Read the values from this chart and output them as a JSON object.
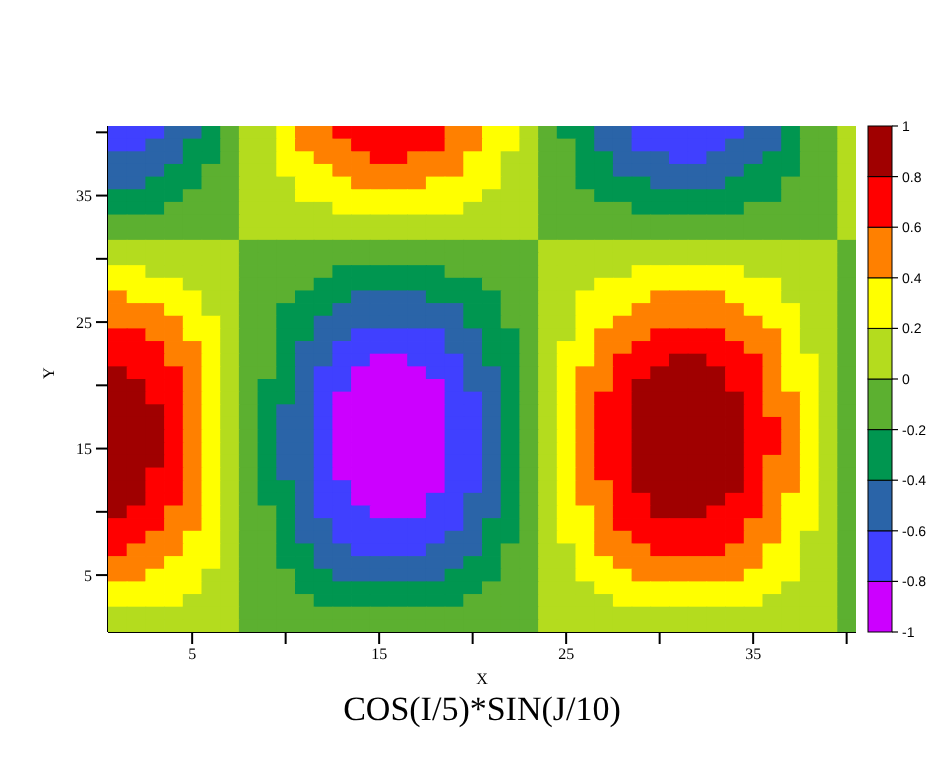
{
  "chart_data": {
    "type": "heatmap",
    "title": "COS(I/5)*SIN(J/10)",
    "xlabel": "X",
    "ylabel": "Y",
    "x": [
      1,
      2,
      3,
      4,
      5,
      6,
      7,
      8,
      9,
      10,
      11,
      12,
      13,
      14,
      15,
      16,
      17,
      18,
      19,
      20,
      21,
      22,
      23,
      24,
      25,
      26,
      27,
      28,
      29,
      30,
      31,
      32,
      33,
      34,
      35,
      36,
      37,
      38,
      39,
      40
    ],
    "y": [
      40,
      39,
      38,
      37,
      36,
      35,
      34,
      33,
      32,
      31,
      30,
      29,
      28,
      27,
      26,
      25,
      24,
      23,
      22,
      21,
      20,
      19,
      18,
      17,
      16,
      15,
      14,
      13,
      12,
      11,
      10,
      9,
      8,
      7,
      6,
      5,
      4,
      3,
      2,
      1
    ],
    "xlim": [
      0.5,
      40.5
    ],
    "ylim": [
      0.5,
      40.5
    ],
    "xticks": [
      5,
      {
        "value": 10,
        "label": null
      },
      15,
      {
        "value": 20,
        "label": null
      },
      25,
      {
        "value": 30,
        "label": null
      },
      35,
      {
        "value": 40,
        "label": null
      }
    ],
    "yticks": [
      5,
      {
        "value": 10,
        "label": null
      },
      15,
      {
        "value": 20,
        "label": null
      },
      25,
      {
        "value": 30,
        "label": null
      },
      35,
      {
        "value": 40,
        "label": null
      }
    ],
    "clim": [
      -1,
      1
    ],
    "cticks": [
      -1,
      -0.8,
      -0.6,
      -0.4,
      -0.2,
      0,
      0.2,
      0.4,
      0.6,
      0.8,
      1
    ],
    "colors": [
      "#cc00ff",
      "#4040ff",
      "#2a64a8",
      "#009650",
      "#5cb030",
      "#b4dc1e",
      "#ffff00",
      "#ff8000",
      "#ff0000",
      "#a00000"
    ],
    "cells": [
      [
        -0.7,
        -0.7,
        -0.7,
        -0.5,
        -0.5,
        -0.3,
        -0.1,
        0.1,
        0.1,
        0.3,
        0.5,
        0.5,
        0.7,
        0.7,
        0.7,
        0.7,
        0.7,
        0.7,
        0.5,
        0.5,
        0.3,
        0.3,
        0.1,
        -0.1,
        -0.3,
        -0.3,
        -0.5,
        -0.5,
        -0.7,
        -0.7,
        -0.7,
        -0.7,
        -0.7,
        -0.7,
        -0.5,
        -0.5,
        -0.3,
        -0.1,
        -0.1,
        0.1
      ],
      [
        -0.7,
        -0.7,
        -0.5,
        -0.5,
        -0.3,
        -0.3,
        -0.1,
        0.1,
        0.1,
        0.3,
        0.5,
        0.5,
        0.5,
        0.7,
        0.7,
        0.7,
        0.7,
        0.7,
        0.5,
        0.5,
        0.3,
        0.3,
        0.1,
        -0.1,
        -0.1,
        -0.3,
        -0.5,
        -0.5,
        -0.7,
        -0.7,
        -0.7,
        -0.7,
        -0.7,
        -0.5,
        -0.5,
        -0.5,
        -0.3,
        -0.1,
        -0.1,
        0.1
      ],
      [
        -0.5,
        -0.5,
        -0.5,
        -0.5,
        -0.3,
        -0.3,
        -0.1,
        0.1,
        0.1,
        0.3,
        0.3,
        0.5,
        0.5,
        0.5,
        0.7,
        0.7,
        0.5,
        0.5,
        0.5,
        0.3,
        0.3,
        0.1,
        0.1,
        -0.1,
        -0.1,
        -0.3,
        -0.3,
        -0.5,
        -0.5,
        -0.5,
        -0.7,
        -0.7,
        -0.5,
        -0.5,
        -0.5,
        -0.3,
        -0.3,
        -0.1,
        -0.1,
        0.1
      ],
      [
        -0.5,
        -0.5,
        -0.5,
        -0.3,
        -0.3,
        -0.1,
        -0.1,
        0.1,
        0.1,
        0.3,
        0.3,
        0.3,
        0.5,
        0.5,
        0.5,
        0.5,
        0.5,
        0.5,
        0.5,
        0.3,
        0.3,
        0.1,
        0.1,
        -0.1,
        -0.1,
        -0.3,
        -0.3,
        -0.5,
        -0.5,
        -0.5,
        -0.5,
        -0.5,
        -0.5,
        -0.5,
        -0.3,
        -0.3,
        -0.3,
        -0.1,
        -0.1,
        0.1
      ],
      [
        -0.5,
        -0.5,
        -0.3,
        -0.3,
        -0.3,
        -0.1,
        -0.1,
        0.1,
        0.1,
        0.1,
        0.3,
        0.3,
        0.3,
        0.5,
        0.5,
        0.5,
        0.5,
        0.3,
        0.3,
        0.3,
        0.3,
        0.1,
        0.1,
        -0.1,
        -0.1,
        -0.3,
        -0.3,
        -0.3,
        -0.3,
        -0.5,
        -0.5,
        -0.5,
        -0.5,
        -0.3,
        -0.3,
        -0.3,
        -0.1,
        -0.1,
        -0.1,
        0.1
      ],
      [
        -0.3,
        -0.3,
        -0.3,
        -0.3,
        -0.1,
        -0.1,
        -0.1,
        0.1,
        0.1,
        0.1,
        0.3,
        0.3,
        0.3,
        0.3,
        0.3,
        0.3,
        0.3,
        0.3,
        0.3,
        0.3,
        0.1,
        0.1,
        0.1,
        -0.1,
        -0.1,
        -0.1,
        -0.3,
        -0.3,
        -0.3,
        -0.3,
        -0.3,
        -0.3,
        -0.3,
        -0.3,
        -0.3,
        -0.3,
        -0.1,
        -0.1,
        -0.1,
        0.1
      ],
      [
        -0.3,
        -0.3,
        -0.3,
        -0.1,
        -0.1,
        -0.1,
        -0.1,
        0.1,
        0.1,
        0.1,
        0.1,
        0.1,
        0.3,
        0.3,
        0.3,
        0.3,
        0.3,
        0.3,
        0.3,
        0.1,
        0.1,
        0.1,
        0.1,
        -0.1,
        -0.1,
        -0.1,
        -0.1,
        -0.1,
        -0.3,
        -0.3,
        -0.3,
        -0.3,
        -0.3,
        -0.3,
        -0.1,
        -0.1,
        -0.1,
        -0.1,
        -0.1,
        0.1
      ],
      [
        -0.1,
        -0.1,
        -0.1,
        -0.1,
        -0.1,
        -0.1,
        -0.1,
        0.1,
        0.1,
        0.1,
        0.1,
        0.1,
        0.1,
        0.1,
        0.1,
        0.1,
        0.1,
        0.1,
        0.1,
        0.1,
        0.1,
        0.1,
        0.1,
        -0.1,
        -0.1,
        -0.1,
        -0.1,
        -0.1,
        -0.1,
        -0.1,
        -0.1,
        -0.1,
        -0.1,
        -0.1,
        -0.1,
        -0.1,
        -0.1,
        -0.1,
        -0.1,
        0.1
      ],
      [
        -0.1,
        -0.1,
        -0.1,
        -0.1,
        -0.1,
        -0.1,
        -0.1,
        0.1,
        0.1,
        0.1,
        0.1,
        0.1,
        0.1,
        0.1,
        0.1,
        0.1,
        0.1,
        0.1,
        0.1,
        0.1,
        0.1,
        0.1,
        0.1,
        -0.1,
        -0.1,
        -0.1,
        -0.1,
        -0.1,
        -0.1,
        -0.1,
        -0.1,
        -0.1,
        -0.1,
        -0.1,
        -0.1,
        -0.1,
        -0.1,
        -0.1,
        -0.1,
        0.1
      ],
      [
        0.1,
        0.1,
        0.1,
        0.1,
        0.1,
        0.1,
        0.1,
        -0.1,
        -0.1,
        -0.1,
        -0.1,
        -0.1,
        -0.1,
        -0.1,
        -0.1,
        -0.1,
        -0.1,
        -0.1,
        -0.1,
        -0.1,
        -0.1,
        -0.1,
        -0.1,
        0.1,
        0.1,
        0.1,
        0.1,
        0.1,
        0.1,
        0.1,
        0.1,
        0.1,
        0.1,
        0.1,
        0.1,
        0.1,
        0.1,
        0.1,
        0.1,
        -0.1
      ],
      [
        0.1,
        0.1,
        0.1,
        0.1,
        0.1,
        0.1,
        0.1,
        -0.1,
        -0.1,
        -0.1,
        -0.1,
        -0.1,
        -0.1,
        -0.1,
        -0.1,
        -0.1,
        -0.1,
        -0.1,
        -0.1,
        -0.1,
        -0.1,
        -0.1,
        -0.1,
        0.1,
        0.1,
        0.1,
        0.1,
        0.1,
        0.1,
        0.1,
        0.1,
        0.1,
        0.1,
        0.1,
        0.1,
        0.1,
        0.1,
        0.1,
        0.1,
        -0.1
      ],
      [
        0.3,
        0.3,
        0.1,
        0.1,
        0.1,
        0.1,
        0.1,
        -0.1,
        -0.1,
        -0.1,
        -0.1,
        -0.1,
        -0.3,
        -0.3,
        -0.3,
        -0.3,
        -0.3,
        -0.3,
        -0.1,
        -0.1,
        -0.1,
        -0.1,
        -0.1,
        0.1,
        0.1,
        0.1,
        0.1,
        0.1,
        0.3,
        0.3,
        0.3,
        0.3,
        0.3,
        0.3,
        0.1,
        0.1,
        0.1,
        0.1,
        0.1,
        -0.1
      ],
      [
        0.3,
        0.3,
        0.3,
        0.3,
        0.1,
        0.1,
        0.1,
        -0.1,
        -0.1,
        -0.1,
        -0.1,
        -0.3,
        -0.3,
        -0.3,
        -0.3,
        -0.3,
        -0.3,
        -0.3,
        -0.3,
        -0.3,
        -0.1,
        -0.1,
        -0.1,
        0.1,
        0.1,
        0.1,
        0.3,
        0.3,
        0.3,
        0.3,
        0.3,
        0.3,
        0.3,
        0.3,
        0.3,
        0.3,
        0.1,
        0.1,
        0.1,
        -0.1
      ],
      [
        0.5,
        0.3,
        0.3,
        0.3,
        0.3,
        0.1,
        0.1,
        -0.1,
        -0.1,
        -0.1,
        -0.3,
        -0.3,
        -0.3,
        -0.5,
        -0.5,
        -0.5,
        -0.5,
        -0.3,
        -0.3,
        -0.3,
        -0.3,
        -0.1,
        -0.1,
        0.1,
        0.1,
        0.3,
        0.3,
        0.3,
        0.3,
        0.5,
        0.5,
        0.5,
        0.5,
        0.3,
        0.3,
        0.3,
        0.1,
        0.1,
        0.1,
        -0.1
      ],
      [
        0.5,
        0.5,
        0.5,
        0.3,
        0.3,
        0.1,
        0.1,
        -0.1,
        -0.1,
        -0.3,
        -0.3,
        -0.3,
        -0.5,
        -0.5,
        -0.5,
        -0.5,
        -0.5,
        -0.5,
        -0.5,
        -0.3,
        -0.3,
        -0.1,
        -0.1,
        0.1,
        0.1,
        0.3,
        0.3,
        0.3,
        0.5,
        0.5,
        0.5,
        0.5,
        0.5,
        0.5,
        0.3,
        0.3,
        0.3,
        0.1,
        0.1,
        -0.1
      ],
      [
        0.5,
        0.5,
        0.5,
        0.5,
        0.3,
        0.3,
        0.1,
        -0.1,
        -0.1,
        -0.3,
        -0.3,
        -0.5,
        -0.5,
        -0.5,
        -0.5,
        -0.5,
        -0.5,
        -0.5,
        -0.5,
        -0.3,
        -0.3,
        -0.1,
        -0.1,
        0.1,
        0.1,
        0.3,
        0.3,
        0.5,
        0.5,
        0.5,
        0.5,
        0.5,
        0.5,
        0.5,
        0.5,
        0.3,
        0.3,
        0.1,
        0.1,
        -0.1
      ],
      [
        0.7,
        0.7,
        0.5,
        0.5,
        0.3,
        0.3,
        0.1,
        -0.1,
        -0.1,
        -0.3,
        -0.3,
        -0.5,
        -0.5,
        -0.7,
        -0.7,
        -0.7,
        -0.7,
        -0.7,
        -0.5,
        -0.5,
        -0.3,
        -0.3,
        -0.1,
        0.1,
        0.1,
        0.3,
        0.5,
        0.5,
        0.5,
        0.7,
        0.7,
        0.7,
        0.7,
        0.5,
        0.5,
        0.5,
        0.3,
        0.1,
        0.1,
        -0.1
      ],
      [
        0.7,
        0.7,
        0.7,
        0.5,
        0.5,
        0.3,
        0.1,
        -0.1,
        -0.1,
        -0.3,
        -0.5,
        -0.5,
        -0.7,
        -0.7,
        -0.7,
        -0.7,
        -0.7,
        -0.7,
        -0.5,
        -0.5,
        -0.3,
        -0.3,
        -0.1,
        0.1,
        0.3,
        0.3,
        0.5,
        0.5,
        0.7,
        0.7,
        0.7,
        0.7,
        0.7,
        0.7,
        0.5,
        0.5,
        0.3,
        0.1,
        0.1,
        -0.1
      ],
      [
        0.7,
        0.7,
        0.7,
        0.5,
        0.5,
        0.3,
        0.1,
        -0.1,
        -0.1,
        -0.3,
        -0.5,
        -0.5,
        -0.7,
        -0.7,
        -0.9,
        -0.9,
        -0.7,
        -0.7,
        -0.7,
        -0.5,
        -0.3,
        -0.3,
        -0.1,
        0.1,
        0.3,
        0.3,
        0.5,
        0.7,
        0.7,
        0.7,
        0.9,
        0.9,
        0.7,
        0.7,
        0.7,
        0.5,
        0.3,
        0.3,
        0.1,
        -0.1
      ],
      [
        0.9,
        0.7,
        0.7,
        0.7,
        0.5,
        0.3,
        0.1,
        -0.1,
        -0.1,
        -0.3,
        -0.5,
        -0.7,
        -0.7,
        -0.9,
        -0.9,
        -0.9,
        -0.9,
        -0.7,
        -0.7,
        -0.5,
        -0.5,
        -0.3,
        -0.1,
        0.1,
        0.3,
        0.5,
        0.5,
        0.7,
        0.7,
        0.9,
        0.9,
        0.9,
        0.9,
        0.7,
        0.7,
        0.5,
        0.3,
        0.3,
        0.1,
        -0.1
      ],
      [
        0.9,
        0.9,
        0.7,
        0.7,
        0.5,
        0.3,
        0.1,
        -0.1,
        -0.3,
        -0.3,
        -0.5,
        -0.7,
        -0.7,
        -0.9,
        -0.9,
        -0.9,
        -0.9,
        -0.9,
        -0.7,
        -0.5,
        -0.5,
        -0.3,
        -0.1,
        0.1,
        0.3,
        0.5,
        0.5,
        0.7,
        0.9,
        0.9,
        0.9,
        0.9,
        0.9,
        0.7,
        0.7,
        0.5,
        0.3,
        0.3,
        0.1,
        -0.1
      ],
      [
        0.9,
        0.9,
        0.7,
        0.7,
        0.5,
        0.3,
        0.1,
        -0.1,
        -0.3,
        -0.3,
        -0.5,
        -0.7,
        -0.9,
        -0.9,
        -0.9,
        -0.9,
        -0.9,
        -0.9,
        -0.7,
        -0.7,
        -0.5,
        -0.3,
        -0.1,
        0.1,
        0.3,
        0.5,
        0.7,
        0.7,
        0.9,
        0.9,
        0.9,
        0.9,
        0.9,
        0.9,
        0.7,
        0.5,
        0.5,
        0.3,
        0.1,
        -0.1
      ],
      [
        0.9,
        0.9,
        0.9,
        0.7,
        0.5,
        0.3,
        0.1,
        -0.1,
        -0.3,
        -0.5,
        -0.5,
        -0.7,
        -0.9,
        -0.9,
        -0.9,
        -0.9,
        -0.9,
        -0.9,
        -0.7,
        -0.7,
        -0.5,
        -0.3,
        -0.1,
        0.1,
        0.3,
        0.5,
        0.7,
        0.7,
        0.9,
        0.9,
        0.9,
        0.9,
        0.9,
        0.9,
        0.7,
        0.5,
        0.5,
        0.3,
        0.1,
        -0.1
      ],
      [
        0.9,
        0.9,
        0.9,
        0.7,
        0.5,
        0.3,
        0.1,
        -0.1,
        -0.3,
        -0.5,
        -0.5,
        -0.7,
        -0.9,
        -0.9,
        -0.9,
        -0.9,
        -0.9,
        -0.9,
        -0.7,
        -0.7,
        -0.5,
        -0.3,
        -0.1,
        0.1,
        0.3,
        0.5,
        0.7,
        0.7,
        0.9,
        0.9,
        0.9,
        0.9,
        0.9,
        0.9,
        0.7,
        0.7,
        0.5,
        0.3,
        0.1,
        -0.1
      ],
      [
        0.9,
        0.9,
        0.9,
        0.7,
        0.5,
        0.3,
        0.1,
        -0.1,
        -0.3,
        -0.5,
        -0.5,
        -0.7,
        -0.9,
        -0.9,
        -0.9,
        -0.9,
        -0.9,
        -0.9,
        -0.7,
        -0.7,
        -0.5,
        -0.3,
        -0.1,
        0.1,
        0.3,
        0.5,
        0.7,
        0.7,
        0.9,
        0.9,
        0.9,
        0.9,
        0.9,
        0.9,
        0.7,
        0.7,
        0.5,
        0.3,
        0.1,
        -0.1
      ],
      [
        0.9,
        0.9,
        0.9,
        0.7,
        0.5,
        0.3,
        0.1,
        -0.1,
        -0.3,
        -0.5,
        -0.5,
        -0.7,
        -0.9,
        -0.9,
        -0.9,
        -0.9,
        -0.9,
        -0.9,
        -0.7,
        -0.7,
        -0.5,
        -0.3,
        -0.1,
        0.1,
        0.3,
        0.5,
        0.7,
        0.7,
        0.9,
        0.9,
        0.9,
        0.9,
        0.9,
        0.9,
        0.7,
        0.7,
        0.5,
        0.3,
        0.1,
        -0.1
      ],
      [
        0.9,
        0.9,
        0.9,
        0.7,
        0.5,
        0.3,
        0.1,
        -0.1,
        -0.3,
        -0.5,
        -0.5,
        -0.7,
        -0.9,
        -0.9,
        -0.9,
        -0.9,
        -0.9,
        -0.9,
        -0.7,
        -0.7,
        -0.5,
        -0.3,
        -0.1,
        0.1,
        0.3,
        0.5,
        0.7,
        0.7,
        0.9,
        0.9,
        0.9,
        0.9,
        0.9,
        0.9,
        0.7,
        0.5,
        0.5,
        0.3,
        0.1,
        -0.1
      ],
      [
        0.9,
        0.9,
        0.7,
        0.7,
        0.5,
        0.3,
        0.1,
        -0.1,
        -0.3,
        -0.5,
        -0.5,
        -0.7,
        -0.9,
        -0.9,
        -0.9,
        -0.9,
        -0.9,
        -0.9,
        -0.7,
        -0.7,
        -0.5,
        -0.3,
        -0.1,
        0.1,
        0.3,
        0.5,
        0.7,
        0.7,
        0.9,
        0.9,
        0.9,
        0.9,
        0.9,
        0.9,
        0.7,
        0.5,
        0.5,
        0.3,
        0.1,
        -0.1
      ],
      [
        0.9,
        0.9,
        0.7,
        0.7,
        0.5,
        0.3,
        0.1,
        -0.1,
        -0.3,
        -0.3,
        -0.5,
        -0.7,
        -0.7,
        -0.9,
        -0.9,
        -0.9,
        -0.9,
        -0.9,
        -0.7,
        -0.7,
        -0.5,
        -0.3,
        -0.1,
        0.1,
        0.3,
        0.5,
        0.5,
        0.7,
        0.9,
        0.9,
        0.9,
        0.9,
        0.9,
        0.9,
        0.7,
        0.5,
        0.5,
        0.3,
        0.1,
        -0.1
      ],
      [
        0.9,
        0.9,
        0.7,
        0.7,
        0.5,
        0.3,
        0.1,
        -0.1,
        -0.3,
        -0.3,
        -0.5,
        -0.7,
        -0.7,
        -0.9,
        -0.9,
        -0.9,
        -0.9,
        -0.7,
        -0.7,
        -0.5,
        -0.5,
        -0.3,
        -0.1,
        0.1,
        0.3,
        0.5,
        0.5,
        0.7,
        0.7,
        0.9,
        0.9,
        0.9,
        0.9,
        0.7,
        0.7,
        0.5,
        0.3,
        0.3,
        0.1,
        -0.1
      ],
      [
        0.9,
        0.7,
        0.7,
        0.5,
        0.5,
        0.3,
        0.1,
        -0.1,
        -0.1,
        -0.3,
        -0.5,
        -0.7,
        -0.7,
        -0.7,
        -0.9,
        -0.9,
        -0.9,
        -0.7,
        -0.7,
        -0.5,
        -0.5,
        -0.3,
        -0.1,
        0.1,
        0.3,
        0.3,
        0.5,
        0.7,
        0.7,
        0.9,
        0.9,
        0.9,
        0.7,
        0.7,
        0.7,
        0.5,
        0.3,
        0.3,
        0.1,
        -0.1
      ],
      [
        0.7,
        0.7,
        0.7,
        0.5,
        0.5,
        0.3,
        0.1,
        -0.1,
        -0.1,
        -0.3,
        -0.5,
        -0.5,
        -0.7,
        -0.7,
        -0.7,
        -0.7,
        -0.7,
        -0.7,
        -0.7,
        -0.5,
        -0.3,
        -0.3,
        -0.1,
        0.1,
        0.3,
        0.3,
        0.5,
        0.7,
        0.7,
        0.7,
        0.7,
        0.7,
        0.7,
        0.7,
        0.5,
        0.5,
        0.3,
        0.3,
        0.1,
        -0.1
      ],
      [
        0.7,
        0.7,
        0.5,
        0.5,
        0.3,
        0.3,
        0.1,
        -0.1,
        -0.1,
        -0.3,
        -0.5,
        -0.5,
        -0.7,
        -0.7,
        -0.7,
        -0.7,
        -0.7,
        -0.7,
        -0.5,
        -0.5,
        -0.3,
        -0.3,
        -0.1,
        0.1,
        0.3,
        0.3,
        0.5,
        0.5,
        0.7,
        0.7,
        0.7,
        0.7,
        0.7,
        0.7,
        0.5,
        0.5,
        0.3,
        0.1,
        0.1,
        -0.1
      ],
      [
        0.7,
        0.5,
        0.5,
        0.5,
        0.3,
        0.3,
        0.1,
        -0.1,
        -0.1,
        -0.3,
        -0.3,
        -0.5,
        -0.5,
        -0.7,
        -0.7,
        -0.7,
        -0.7,
        -0.5,
        -0.5,
        -0.5,
        -0.3,
        -0.1,
        -0.1,
        0.1,
        0.1,
        0.3,
        0.5,
        0.5,
        0.5,
        0.7,
        0.7,
        0.7,
        0.7,
        0.5,
        0.5,
        0.3,
        0.3,
        0.1,
        0.1,
        -0.1
      ],
      [
        0.5,
        0.5,
        0.5,
        0.3,
        0.3,
        0.3,
        0.1,
        -0.1,
        -0.1,
        -0.3,
        -0.3,
        -0.5,
        -0.5,
        -0.5,
        -0.5,
        -0.5,
        -0.5,
        -0.5,
        -0.5,
        -0.3,
        -0.3,
        -0.1,
        -0.1,
        0.1,
        0.1,
        0.3,
        0.3,
        0.5,
        0.5,
        0.5,
        0.5,
        0.5,
        0.5,
        0.5,
        0.5,
        0.3,
        0.3,
        0.1,
        0.1,
        -0.1
      ],
      [
        0.5,
        0.5,
        0.3,
        0.3,
        0.3,
        0.1,
        0.1,
        -0.1,
        -0.1,
        -0.1,
        -0.3,
        -0.3,
        -0.5,
        -0.5,
        -0.5,
        -0.5,
        -0.5,
        -0.5,
        -0.3,
        -0.3,
        -0.3,
        -0.1,
        -0.1,
        0.1,
        0.1,
        0.3,
        0.3,
        0.3,
        0.5,
        0.5,
        0.5,
        0.5,
        0.5,
        0.5,
        0.3,
        0.3,
        0.3,
        0.1,
        0.1,
        -0.1
      ],
      [
        0.3,
        0.3,
        0.3,
        0.3,
        0.3,
        0.1,
        0.1,
        -0.1,
        -0.1,
        -0.1,
        -0.3,
        -0.3,
        -0.3,
        -0.3,
        -0.3,
        -0.3,
        -0.3,
        -0.3,
        -0.3,
        -0.3,
        -0.1,
        -0.1,
        -0.1,
        0.1,
        0.1,
        0.1,
        0.3,
        0.3,
        0.3,
        0.3,
        0.3,
        0.3,
        0.3,
        0.3,
        0.3,
        0.3,
        0.1,
        0.1,
        0.1,
        -0.1
      ],
      [
        0.3,
        0.3,
        0.3,
        0.3,
        0.1,
        0.1,
        0.1,
        -0.1,
        -0.1,
        -0.1,
        -0.1,
        -0.3,
        -0.3,
        -0.3,
        -0.3,
        -0.3,
        -0.3,
        -0.3,
        -0.3,
        -0.1,
        -0.1,
        -0.1,
        -0.1,
        0.1,
        0.1,
        0.1,
        0.1,
        0.3,
        0.3,
        0.3,
        0.3,
        0.3,
        0.3,
        0.3,
        0.3,
        0.1,
        0.1,
        0.1,
        0.1,
        -0.1
      ],
      [
        0.1,
        0.1,
        0.1,
        0.1,
        0.1,
        0.1,
        0.1,
        -0.1,
        -0.1,
        -0.1,
        -0.1,
        -0.1,
        -0.1,
        -0.1,
        -0.1,
        -0.1,
        -0.1,
        -0.1,
        -0.1,
        -0.1,
        -0.1,
        -0.1,
        -0.1,
        0.1,
        0.1,
        0.1,
        0.1,
        0.1,
        0.1,
        0.1,
        0.1,
        0.1,
        0.1,
        0.1,
        0.1,
        0.1,
        0.1,
        0.1,
        0.1,
        -0.1
      ],
      [
        0.1,
        0.1,
        0.1,
        0.1,
        0.1,
        0.1,
        0.1,
        -0.1,
        -0.1,
        -0.1,
        -0.1,
        -0.1,
        -0.1,
        -0.1,
        -0.1,
        -0.1,
        -0.1,
        -0.1,
        -0.1,
        -0.1,
        -0.1,
        -0.1,
        -0.1,
        0.1,
        0.1,
        0.1,
        0.1,
        0.1,
        0.1,
        0.1,
        0.1,
        0.1,
        0.1,
        0.1,
        0.1,
        0.1,
        0.1,
        0.1,
        0.1,
        -0.1
      ]
    ]
  }
}
